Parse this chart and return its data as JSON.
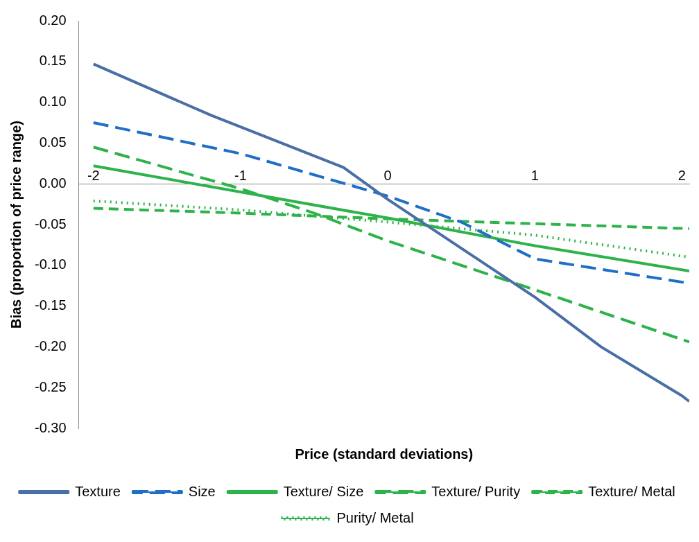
{
  "chart_data": {
    "type": "line",
    "xlabel": "Price (standard deviations)",
    "ylabel": "Bias (proportion of price range)",
    "x": [
      -2,
      -1,
      0,
      1,
      2.05
    ],
    "xlim": [
      -2.1,
      2.05
    ],
    "xticks": [
      -2,
      -1,
      0,
      1,
      2
    ],
    "ylim": [
      -0.3,
      0.2
    ],
    "yticks": [
      {
        "value": -0.3,
        "label": "-0.30"
      },
      {
        "value": -0.25,
        "label": "-0.25"
      },
      {
        "value": -0.2,
        "label": "-0.20"
      },
      {
        "value": -0.15,
        "label": "-0.15"
      },
      {
        "value": -0.1,
        "label": "-0.10"
      },
      {
        "value": -0.05,
        "label": "-0.05"
      },
      {
        "value": 0,
        "label": "0.00"
      },
      {
        "value": 0.05,
        "label": "0.05"
      },
      {
        "value": 0.1,
        "label": "0.10"
      },
      {
        "value": 0.15,
        "label": "0.15"
      },
      {
        "value": 0.2,
        "label": "0.20"
      }
    ],
    "legend": "bottom",
    "marker": "none",
    "series": [
      {
        "name": "Texture",
        "color": "#4a6fa5",
        "line_style": "solid",
        "x": [
          -2,
          -1.2,
          -0.3,
          0,
          1,
          1.45,
          2,
          2.05
        ],
        "values": [
          0.147,
          0.084,
          0.02,
          -0.019,
          -0.139,
          -0.2,
          -0.26,
          -0.267
        ]
      },
      {
        "name": "Size",
        "color": "#1f6fc5",
        "line_style": "dashed",
        "x": [
          -2,
          -1,
          -0.25,
          0,
          0.5,
          1,
          2.05
        ],
        "values": [
          0.075,
          0.037,
          -0.002,
          -0.015,
          -0.047,
          -0.092,
          -0.122
        ]
      },
      {
        "name": "Texture/ Size",
        "color": "#2db34a",
        "line_style": "solid",
        "values": [
          0.022,
          -0.01,
          -0.042,
          -0.076,
          -0.107
        ]
      },
      {
        "name": "Texture/ Purity",
        "color": "#2db34a",
        "line_style": "dashed",
        "x": [
          -2,
          -1,
          -0.5,
          0,
          1,
          2.05
        ],
        "values": [
          0.045,
          -0.006,
          -0.036,
          -0.07,
          -0.13,
          -0.194
        ]
      },
      {
        "name": "Texture/ Metal",
        "color": "#2db34a",
        "line_style": "dashed",
        "values": [
          -0.03,
          -0.036,
          -0.043,
          -0.049,
          -0.055
        ]
      },
      {
        "name": "Purity/ Metal",
        "color": "#2db34a",
        "line_style": "dotted",
        "values": [
          -0.021,
          -0.032,
          -0.047,
          -0.063,
          -0.09
        ]
      }
    ]
  }
}
